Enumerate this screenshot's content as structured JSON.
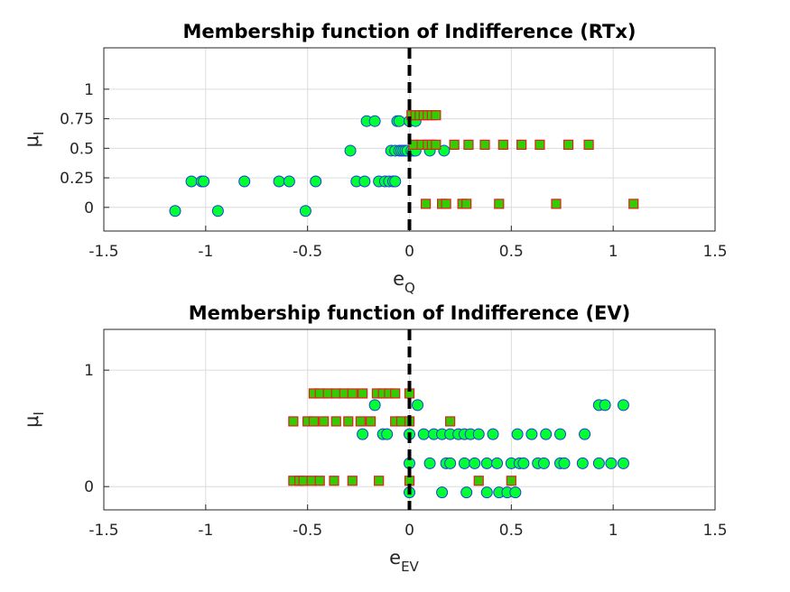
{
  "chart_data": [
    {
      "type": "scatter",
      "title": "Membership function of Indifference (RTx)",
      "xlabel": "e",
      "xlabel_sub": "Q",
      "ylabel": "μ",
      "ylabel_sub": "I",
      "xlim": [
        -1.5,
        1.5
      ],
      "ylim": [
        -0.2,
        1.35
      ],
      "xticks": [
        -1.5,
        -1,
        -0.5,
        0,
        0.5,
        1,
        1.5
      ],
      "xtick_labels": [
        "-1.5",
        "-1",
        "-0.5",
        "0",
        "0.5",
        "1",
        "1.5"
      ],
      "yticks": [
        0,
        0.25,
        0.5,
        0.75,
        1
      ],
      "ytick_labels": [
        "0",
        "0.25",
        "0.5",
        "0.75",
        "1"
      ],
      "grid": true,
      "vertical_line_x": 0,
      "series": [
        {
          "marker": "circle",
          "points": [
            [
              -1.15,
              -0.03
            ],
            [
              -0.94,
              -0.03
            ],
            [
              -0.51,
              -0.03
            ],
            [
              -1.07,
              0.22
            ],
            [
              -1.02,
              0.22
            ],
            [
              -1.01,
              0.22
            ],
            [
              -0.81,
              0.22
            ],
            [
              -0.64,
              0.22
            ],
            [
              -0.59,
              0.22
            ],
            [
              -0.46,
              0.22
            ],
            [
              -0.26,
              0.22
            ],
            [
              -0.22,
              0.22
            ],
            [
              -0.15,
              0.22
            ],
            [
              -0.12,
              0.22
            ],
            [
              -0.1,
              0.22
            ],
            [
              -0.08,
              0.22
            ],
            [
              -0.07,
              0.22
            ],
            [
              -0.29,
              0.48
            ],
            [
              -0.09,
              0.48
            ],
            [
              -0.07,
              0.48
            ],
            [
              -0.05,
              0.48
            ],
            [
              -0.04,
              0.48
            ],
            [
              -0.03,
              0.48
            ],
            [
              -0.02,
              0.48
            ],
            [
              -0.01,
              0.48
            ],
            [
              0.01,
              0.48
            ],
            [
              0.02,
              0.48
            ],
            [
              0.03,
              0.48
            ],
            [
              0.1,
              0.48
            ],
            [
              0.17,
              0.48
            ],
            [
              -0.21,
              0.73
            ],
            [
              -0.17,
              0.73
            ],
            [
              -0.06,
              0.73
            ],
            [
              -0.05,
              0.73
            ],
            [
              0.0,
              0.73
            ],
            [
              0.03,
              0.73
            ]
          ]
        },
        {
          "marker": "square",
          "points": [
            [
              0.08,
              0.03
            ],
            [
              0.16,
              0.03
            ],
            [
              0.18,
              0.03
            ],
            [
              0.26,
              0.03
            ],
            [
              0.28,
              0.03
            ],
            [
              0.44,
              0.03
            ],
            [
              0.72,
              0.03
            ],
            [
              1.1,
              0.03
            ],
            [
              0.02,
              0.53
            ],
            [
              0.06,
              0.53
            ],
            [
              0.09,
              0.53
            ],
            [
              0.11,
              0.53
            ],
            [
              0.13,
              0.53
            ],
            [
              0.22,
              0.53
            ],
            [
              0.29,
              0.53
            ],
            [
              0.37,
              0.53
            ],
            [
              0.46,
              0.53
            ],
            [
              0.55,
              0.53
            ],
            [
              0.64,
              0.53
            ],
            [
              0.78,
              0.53
            ],
            [
              0.88,
              0.53
            ],
            [
              0.01,
              0.78
            ],
            [
              0.03,
              0.78
            ],
            [
              0.05,
              0.78
            ],
            [
              0.07,
              0.78
            ],
            [
              0.09,
              0.78
            ],
            [
              0.11,
              0.78
            ],
            [
              0.13,
              0.78
            ]
          ]
        }
      ]
    },
    {
      "type": "scatter",
      "title": "Membership function of Indifference (EV)",
      "xlabel": "e",
      "xlabel_sub": "EV",
      "ylabel": "μ",
      "ylabel_sub": "I",
      "xlim": [
        -1.5,
        1.5
      ],
      "ylim": [
        -0.2,
        1.35
      ],
      "xticks": [
        -1.5,
        -1,
        -0.5,
        0,
        0.5,
        1,
        1.5
      ],
      "xtick_labels": [
        "-1.5",
        "-1",
        "-0.5",
        "0",
        "0.5",
        "1",
        "1.5"
      ],
      "yticks": [
        0,
        1
      ],
      "ytick_labels": [
        "0",
        "1"
      ],
      "grid": true,
      "vertical_line_x": 0,
      "series": [
        {
          "marker": "circle",
          "points": [
            [
              0.0,
              -0.05
            ],
            [
              0.16,
              -0.05
            ],
            [
              0.28,
              -0.05
            ],
            [
              0.38,
              -0.05
            ],
            [
              0.44,
              -0.05
            ],
            [
              0.48,
              -0.05
            ],
            [
              0.52,
              -0.05
            ],
            [
              0.0,
              0.2
            ],
            [
              0.1,
              0.2
            ],
            [
              0.18,
              0.2
            ],
            [
              0.2,
              0.2
            ],
            [
              0.27,
              0.2
            ],
            [
              0.32,
              0.2
            ],
            [
              0.38,
              0.2
            ],
            [
              0.43,
              0.2
            ],
            [
              0.5,
              0.2
            ],
            [
              0.54,
              0.2
            ],
            [
              0.56,
              0.2
            ],
            [
              0.63,
              0.2
            ],
            [
              0.66,
              0.2
            ],
            [
              0.74,
              0.2
            ],
            [
              0.76,
              0.2
            ],
            [
              0.85,
              0.2
            ],
            [
              0.93,
              0.2
            ],
            [
              0.99,
              0.2
            ],
            [
              1.05,
              0.2
            ],
            [
              -0.23,
              0.45
            ],
            [
              -0.13,
              0.45
            ],
            [
              -0.11,
              0.45
            ],
            [
              0.0,
              0.45
            ],
            [
              0.07,
              0.45
            ],
            [
              0.12,
              0.45
            ],
            [
              0.16,
              0.45
            ],
            [
              0.2,
              0.45
            ],
            [
              0.24,
              0.45
            ],
            [
              0.27,
              0.45
            ],
            [
              0.3,
              0.45
            ],
            [
              0.34,
              0.45
            ],
            [
              0.41,
              0.45
            ],
            [
              0.53,
              0.45
            ],
            [
              0.6,
              0.45
            ],
            [
              0.67,
              0.45
            ],
            [
              0.74,
              0.45
            ],
            [
              0.86,
              0.45
            ],
            [
              -0.17,
              0.7
            ],
            [
              0.04,
              0.7
            ],
            [
              0.93,
              0.7
            ],
            [
              0.96,
              0.7
            ],
            [
              1.05,
              0.7
            ]
          ]
        },
        {
          "marker": "square",
          "points": [
            [
              -0.57,
              0.05
            ],
            [
              -0.54,
              0.05
            ],
            [
              -0.52,
              0.05
            ],
            [
              -0.48,
              0.05
            ],
            [
              -0.44,
              0.05
            ],
            [
              -0.37,
              0.05
            ],
            [
              -0.28,
              0.05
            ],
            [
              -0.15,
              0.05
            ],
            [
              0.0,
              0.05
            ],
            [
              0.34,
              0.05
            ],
            [
              0.5,
              0.05
            ],
            [
              -0.57,
              0.56
            ],
            [
              -0.5,
              0.56
            ],
            [
              -0.47,
              0.56
            ],
            [
              -0.42,
              0.56
            ],
            [
              -0.36,
              0.56
            ],
            [
              -0.3,
              0.56
            ],
            [
              -0.24,
              0.56
            ],
            [
              -0.19,
              0.56
            ],
            [
              -0.07,
              0.56
            ],
            [
              -0.04,
              0.56
            ],
            [
              0.0,
              0.56
            ],
            [
              0.2,
              0.56
            ],
            [
              -0.47,
              0.8
            ],
            [
              -0.44,
              0.8
            ],
            [
              -0.4,
              0.8
            ],
            [
              -0.36,
              0.8
            ],
            [
              -0.32,
              0.8
            ],
            [
              -0.28,
              0.8
            ],
            [
              -0.23,
              0.8
            ],
            [
              -0.16,
              0.8
            ],
            [
              -0.13,
              0.8
            ],
            [
              -0.1,
              0.8
            ],
            [
              -0.07,
              0.8
            ],
            [
              0.0,
              0.8
            ]
          ]
        }
      ]
    }
  ]
}
